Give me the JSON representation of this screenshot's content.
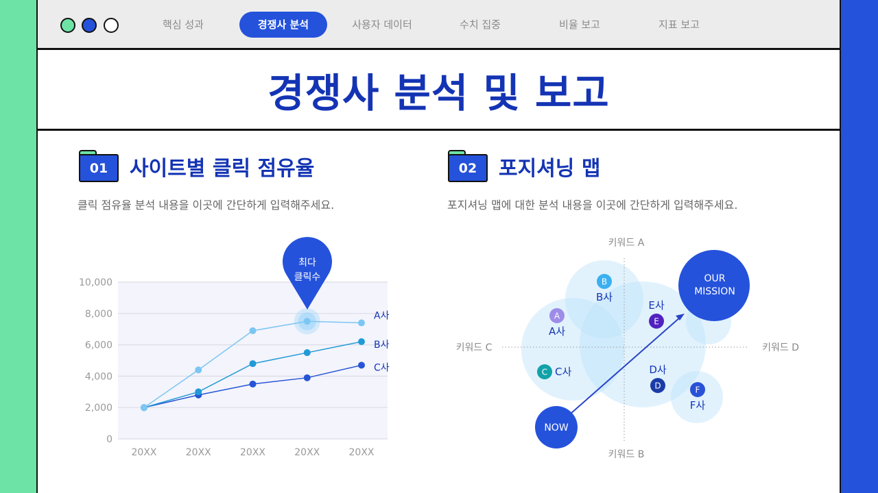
{
  "window_controls": [
    {
      "name": "green",
      "color": "#6ee3a6"
    },
    {
      "name": "blue",
      "color": "#2552db"
    },
    {
      "name": "white",
      "color": "#ffffff"
    }
  ],
  "nav": {
    "tabs": [
      {
        "label": "핵심 성과"
      },
      {
        "label": "경쟁사 분석",
        "active": true
      },
      {
        "label": "사용자 데이터"
      },
      {
        "label": "수치 집중"
      },
      {
        "label": "비율 보고"
      },
      {
        "label": "지표 보고"
      }
    ]
  },
  "page_title": "경쟁사 분석 및 보고",
  "section1": {
    "number": "01",
    "title": "사이트별 클릭 점유율",
    "description": "클릭 점유율 분석 내용을 이곳에 간단하게 입력해주세요.",
    "callout": [
      "최다",
      "클릭수"
    ]
  },
  "section2": {
    "number": "02",
    "title": "포지셔닝 맵",
    "description": "포지셔닝 맵에 대한 분석 내용을 이곳에 간단하게 입력해주세요."
  },
  "chart_data": {
    "type": "line",
    "categories": [
      "20XX",
      "20XX",
      "20XX",
      "20XX",
      "20XX"
    ],
    "ylim": [
      0,
      10000
    ],
    "yticks": [
      "0",
      "2,000",
      "4,000",
      "6,000",
      "8,000",
      "10,000"
    ],
    "grid": true,
    "series": [
      {
        "name": "A사",
        "values": [
          2000,
          4400,
          6900,
          7500,
          7400
        ],
        "color": "#7cc6f2"
      },
      {
        "name": "B사",
        "values": [
          2000,
          3000,
          4800,
          5500,
          6200
        ],
        "color": "#229ad6"
      },
      {
        "name": "C사",
        "values": [
          2000,
          2800,
          3500,
          3900,
          4700
        ],
        "color": "#2554d6"
      }
    ],
    "highlight": {
      "series": "A사",
      "index": 3
    }
  },
  "positioning_map": {
    "axes": {
      "top": "키워드 A",
      "bottom": "키워드 B",
      "left": "키워드 C",
      "right": "키워드 D"
    },
    "companies": [
      {
        "badge": "A",
        "label": "A사",
        "color": "#9d8ce8"
      },
      {
        "badge": "B",
        "label": "B사",
        "color": "#3bb0f0"
      },
      {
        "badge": "C",
        "label": "C사",
        "color": "#12a2a8"
      },
      {
        "badge": "D",
        "label": "D사",
        "color": "#1b3ca8"
      },
      {
        "badge": "E",
        "label": "E사",
        "color": "#5122c0"
      },
      {
        "badge": "F",
        "label": "F사",
        "color": "#2a52d6"
      }
    ],
    "now_label": "NOW",
    "mission_label": [
      "OUR",
      "MISSION"
    ]
  }
}
